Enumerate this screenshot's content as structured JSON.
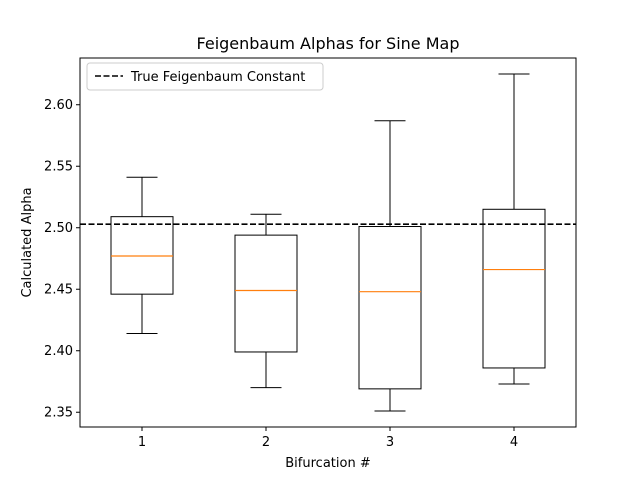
{
  "chart_data": {
    "type": "box",
    "title": "Feigenbaum Alphas for Sine Map",
    "xlabel": "Bifurcation #",
    "ylabel": "Calculated Alpha",
    "categories": [
      "1",
      "2",
      "3",
      "4"
    ],
    "xlim": [
      0.5,
      4.5
    ],
    "ylim": [
      2.338,
      2.638
    ],
    "yticks": [
      2.35,
      2.4,
      2.45,
      2.5,
      2.55,
      2.6
    ],
    "ytick_labels": [
      "2.35",
      "2.40",
      "2.45",
      "2.50",
      "2.55",
      "2.60"
    ],
    "boxes": [
      {
        "category": "1",
        "whisker_low": 2.414,
        "q1": 2.446,
        "median": 2.477,
        "q3": 2.509,
        "whisker_high": 2.541
      },
      {
        "category": "2",
        "whisker_low": 2.37,
        "q1": 2.399,
        "median": 2.449,
        "q3": 2.494,
        "whisker_high": 2.511
      },
      {
        "category": "3",
        "whisker_low": 2.351,
        "q1": 2.369,
        "median": 2.448,
        "q3": 2.501,
        "whisker_high": 2.587
      },
      {
        "category": "4",
        "whisker_low": 2.373,
        "q1": 2.386,
        "median": 2.466,
        "q3": 2.515,
        "whisker_high": 2.625
      }
    ],
    "reference_line": {
      "label": "True Feigenbaum Constant",
      "value": 2.5029,
      "style": "dashed",
      "color": "#000000"
    },
    "median_color": "#ff7f0e",
    "box_color": "#000000",
    "legend_position": "top-left",
    "grid": false
  }
}
